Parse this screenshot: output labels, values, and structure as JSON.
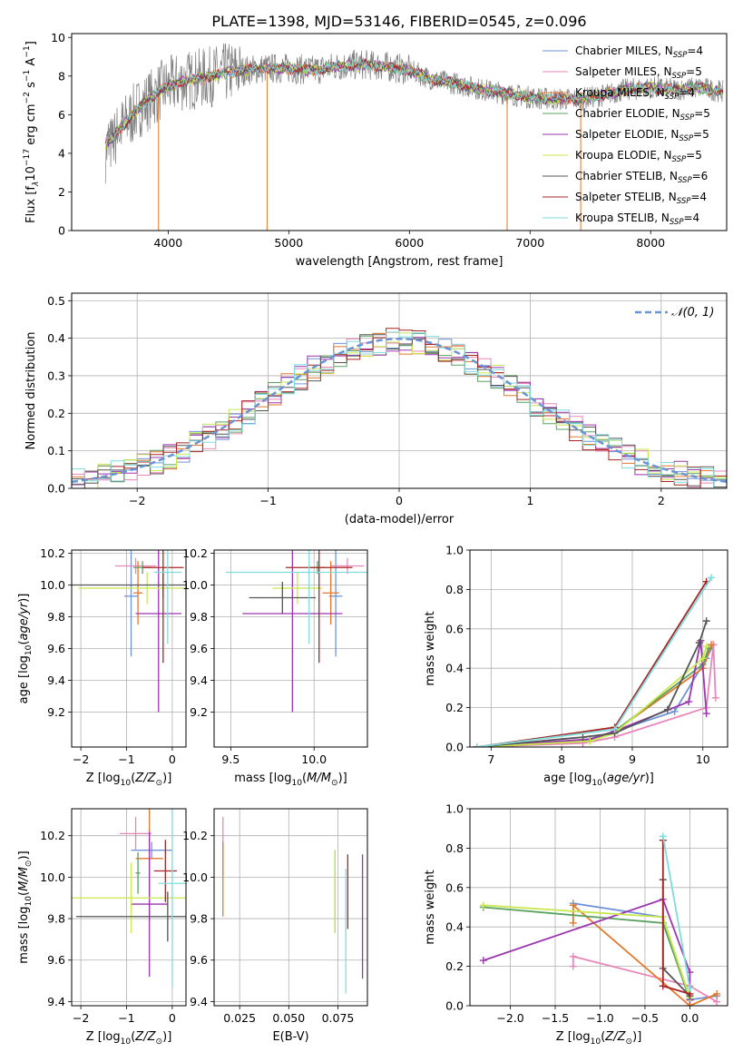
{
  "figure_title": "PLATE=1398, MJD=53146, FIBERID=0545, z=0.096",
  "colors": {
    "Chabrier MILES": "#6f93d8",
    "Salpeter MILES": "#e986b8",
    "Kroupa MILES": "#e3782b",
    "Chabrier ELODIE": "#5aa060",
    "Salpeter ELODIE": "#9b35b0",
    "Kroupa ELODIE": "#c8e84e",
    "Chabrier STELIB": "#555555",
    "Salpeter STELIB": "#a82424",
    "Kroupa STELIB": "#7fdcdc",
    "data": "#808080",
    "normal": "#6a93d4"
  },
  "chart_data": [
    {
      "type": "line",
      "title": "",
      "xlabel": "wavelength [Angstrom, rest frame]",
      "ylabel": "Flux [f",
      "ylabel_parts": [
        "λ",
        "10",
        "−17",
        " erg cm",
        "−2",
        " s",
        "−1",
        " A",
        "−1",
        "]"
      ],
      "xlim": [
        3200,
        8630
      ],
      "ylim": [
        0,
        10.2
      ],
      "xticks": [
        4000,
        5000,
        6000,
        7000,
        8000
      ],
      "yticks": [
        0,
        2,
        4,
        6,
        8,
        10
      ],
      "legend": [
        {
          "label": "Chabrier MILES, N",
          "sub": "SSP",
          "eq": "=4"
        },
        {
          "label": "Salpeter MILES, N",
          "sub": "SSP",
          "eq": "=5"
        },
        {
          "label": "Kroupa MILES, N",
          "sub": "SSP",
          "eq": "=4"
        },
        {
          "label": "Chabrier ELODIE, N",
          "sub": "SSP",
          "eq": "=5"
        },
        {
          "label": "Salpeter ELODIE, N",
          "sub": "SSP",
          "eq": "=5"
        },
        {
          "label": "Kroupa ELODIE, N",
          "sub": "SSP",
          "eq": "=5"
        },
        {
          "label": "Chabrier STELIB, N",
          "sub": "SSP",
          "eq": "=6"
        },
        {
          "label": "Salpeter STELIB, N",
          "sub": "SSP",
          "eq": "=4"
        },
        {
          "label": "Kroupa STELIB, N",
          "sub": "SSP",
          "eq": "=4"
        }
      ],
      "legend_loc": "right",
      "continuum": [
        [
          3480,
          4.5
        ],
        [
          3550,
          4.9
        ],
        [
          3650,
          5.6
        ],
        [
          3750,
          6.3
        ],
        [
          3850,
          6.8
        ],
        [
          3950,
          7.3
        ],
        [
          4100,
          7.7
        ],
        [
          4300,
          7.9
        ],
        [
          4500,
          8.2
        ],
        [
          4800,
          8.4
        ],
        [
          5000,
          8.4
        ],
        [
          5200,
          8.3
        ],
        [
          5400,
          8.5
        ],
        [
          5600,
          8.6
        ],
        [
          5800,
          8.5
        ],
        [
          6000,
          8.3
        ],
        [
          6200,
          7.8
        ],
        [
          6400,
          7.6
        ],
        [
          6600,
          7.3
        ],
        [
          6800,
          7.1
        ],
        [
          7000,
          6.9
        ],
        [
          7200,
          6.8
        ],
        [
          7400,
          6.8
        ],
        [
          7600,
          7.0
        ],
        [
          7800,
          7.3
        ],
        [
          8000,
          7.4
        ],
        [
          8200,
          7.3
        ],
        [
          8400,
          7.4
        ],
        [
          8600,
          7.2
        ]
      ],
      "spikes_down": [
        3920,
        4820,
        6810,
        7420
      ],
      "grid": false
    },
    {
      "type": "bar",
      "xlabel": "(data-model)/error",
      "ylabel": "Normed distribution",
      "xlim": [
        -2.5,
        2.5
      ],
      "ylim": [
        0,
        0.52
      ],
      "xticks": [
        -2,
        -1,
        0,
        1,
        2
      ],
      "yticks": [
        0.0,
        0.1,
        0.2,
        0.3,
        0.4,
        0.5
      ],
      "bin_width": 0.1,
      "legend": "𝒩(0, 1)",
      "legend_loc": "top-right",
      "grid": true
    },
    {
      "type": "scatter",
      "xlabel": "Z [log",
      "xlabel_parts": [
        "10",
        "(",
        "Z/Z",
        "⊙",
        ")]"
      ],
      "ylabel": "age  [log",
      "ylabel_parts": [
        "10",
        "(",
        "age/yr",
        ")]"
      ],
      "xlim": [
        -2.2,
        0.3
      ],
      "ylim": [
        8.98,
        10.22
      ],
      "xticks": [
        -2,
        -1,
        0
      ],
      "yticks": [
        9.2,
        9.4,
        9.6,
        9.8,
        10.0,
        10.2
      ],
      "points": [
        {
          "model": "Chabrier MILES",
          "x": -0.9,
          "xerr": 0.15,
          "y": 9.93,
          "yerr": 0.38
        },
        {
          "model": "Salpeter MILES",
          "x": -0.8,
          "xerr": 0.45,
          "y": 10.12,
          "yerr": 0.05
        },
        {
          "model": "Kroupa MILES",
          "x": -0.75,
          "xerr": 0.1,
          "y": 9.95,
          "yerr": 0.2
        },
        {
          "model": "Chabrier ELODIE",
          "x": -0.65,
          "xerr": 0.2,
          "y": 10.11,
          "yerr": 0.04
        },
        {
          "model": "Salpeter ELODIE",
          "x": -0.3,
          "xerr": 0.5,
          "y": 9.82,
          "yerr": 0.62
        },
        {
          "model": "Kroupa ELODIE",
          "x": -0.55,
          "xerr": 1.5,
          "y": 9.98,
          "yerr": 0.1
        },
        {
          "model": "Chabrier STELIB",
          "x": -0.2,
          "xerr": 2.0,
          "y": 10.0,
          "yerr": 0.08
        },
        {
          "model": "Salpeter STELIB",
          "x": -0.2,
          "xerr": 0.45,
          "y": 10.11,
          "yerr": 0.6
        },
        {
          "model": "Kroupa STELIB",
          "x": -0.1,
          "xerr": 0.3,
          "y": 10.08,
          "yerr": 0.45
        }
      ],
      "grid": true
    },
    {
      "type": "scatter",
      "xlabel": "mass [log",
      "xlabel_parts": [
        "10",
        "(",
        "M/M",
        "⊙",
        ")]"
      ],
      "ylabel": "",
      "xlim": [
        9.4,
        10.32
      ],
      "ylim": [
        8.98,
        10.22
      ],
      "xticks": [
        9.5,
        10.0
      ],
      "xtick_labels": [
        "9.5",
        "10.0"
      ],
      "yticks": [
        9.2,
        9.4,
        9.6,
        9.8,
        10.0,
        10.2
      ],
      "points": [
        {
          "model": "Chabrier MILES",
          "x": 10.13,
          "xerr": 0.04,
          "y": 9.93,
          "yerr": 0.38
        },
        {
          "model": "Salpeter MILES",
          "x": 10.2,
          "xerr": 0.1,
          "y": 10.12,
          "yerr": 0.05
        },
        {
          "model": "Kroupa MILES",
          "x": 10.1,
          "xerr": 0.05,
          "y": 9.95,
          "yerr": 0.2
        },
        {
          "model": "Chabrier ELODIE",
          "x": 10.02,
          "xerr": 0.05,
          "y": 10.11,
          "yerr": 0.04
        },
        {
          "model": "Salpeter ELODIE",
          "x": 9.87,
          "xerr": 0.3,
          "y": 9.82,
          "yerr": 0.62
        },
        {
          "model": "Kroupa ELODIE",
          "x": 9.9,
          "xerr": 0.15,
          "y": 9.98,
          "yerr": 0.1
        },
        {
          "model": "Chabrier STELIB",
          "x": 9.81,
          "xerr": 0.2,
          "y": 9.92,
          "yerr": 0.1
        },
        {
          "model": "Salpeter STELIB",
          "x": 10.03,
          "xerr": 0.2,
          "y": 10.11,
          "yerr": 0.6
        },
        {
          "model": "Kroupa STELIB",
          "x": 9.97,
          "xerr": 0.5,
          "y": 10.08,
          "yerr": 0.45
        }
      ],
      "grid": true
    },
    {
      "type": "line",
      "xlabel": "age  [log",
      "xlabel_parts": [
        "10",
        "(",
        "age/yr",
        ")]"
      ],
      "ylabel": "mass weight",
      "xlim": [
        6.7,
        10.35
      ],
      "ylim": [
        0,
        1.0
      ],
      "xticks": [
        7,
        8,
        9,
        10
      ],
      "yticks": [
        0.0,
        0.2,
        0.4,
        0.6,
        0.8,
        1.0
      ],
      "series": [
        {
          "model": "Chabrier MILES",
          "x": [
            6.8,
            8.3,
            8.75,
            9.6,
            10.05,
            10.15
          ],
          "y": [
            0.0,
            0.03,
            0.08,
            0.18,
            0.45,
            0.52
          ]
        },
        {
          "model": "Salpeter MILES",
          "x": [
            6.8,
            8.3,
            8.75,
            10.05,
            10.15,
            10.18
          ],
          "y": [
            0.0,
            0.02,
            0.05,
            0.2,
            0.52,
            0.25
          ]
        },
        {
          "model": "Kroupa MILES",
          "x": [
            6.8,
            8.4,
            8.75,
            10.0,
            10.12
          ],
          "y": [
            0.0,
            0.03,
            0.08,
            0.4,
            0.52
          ]
        },
        {
          "model": "Chabrier ELODIE",
          "x": [
            6.8,
            8.4,
            8.75,
            10.0,
            10.08
          ],
          "y": [
            0.0,
            0.03,
            0.08,
            0.42,
            0.5
          ]
        },
        {
          "model": "Salpeter ELODIE",
          "x": [
            6.8,
            8.4,
            8.75,
            9.8,
            9.97,
            10.05
          ],
          "y": [
            0.0,
            0.04,
            0.08,
            0.23,
            0.54,
            0.17
          ]
        },
        {
          "model": "Kroupa ELODIE",
          "x": [
            6.8,
            8.4,
            8.75,
            10.0,
            10.05
          ],
          "y": [
            0.0,
            0.03,
            0.07,
            0.45,
            0.51
          ]
        },
        {
          "model": "Chabrier STELIB",
          "x": [
            6.8,
            8.3,
            8.75,
            9.5,
            9.95,
            10.05
          ],
          "y": [
            0.0,
            0.05,
            0.07,
            0.19,
            0.53,
            0.64
          ]
        },
        {
          "model": "Salpeter STELIB",
          "x": [
            6.8,
            8.75,
            10.05
          ],
          "y": [
            0.0,
            0.1,
            0.84
          ]
        },
        {
          "model": "Kroupa STELIB",
          "x": [
            6.8,
            8.75,
            10.12
          ],
          "y": [
            0.0,
            0.09,
            0.86
          ]
        }
      ],
      "grid": true
    },
    {
      "type": "scatter",
      "xlabel": "Z [log",
      "xlabel_parts": [
        "10",
        "(",
        "Z/Z",
        "⊙",
        ")]"
      ],
      "ylabel": "mass [log",
      "ylabel_parts": [
        "10",
        "(",
        "M/M",
        "⊙",
        ")]"
      ],
      "xlim": [
        -2.2,
        0.3
      ],
      "ylim": [
        9.38,
        10.33
      ],
      "xticks": [
        -2,
        -1,
        0
      ],
      "yticks": [
        9.4,
        9.6,
        9.8,
        10.0,
        10.2
      ],
      "points": [
        {
          "model": "Chabrier MILES",
          "x": -0.45,
          "xerr": 0.45,
          "y": 10.13,
          "yerr": 0.04
        },
        {
          "model": "Salpeter MILES",
          "x": -0.8,
          "xerr": 0.35,
          "y": 10.21,
          "yerr": 0.08
        },
        {
          "model": "Kroupa MILES",
          "x": -0.5,
          "xerr": 0.3,
          "y": 10.09,
          "yerr": 0.3
        },
        {
          "model": "Chabrier ELODIE",
          "x": -0.75,
          "xerr": 0.05,
          "y": 10.02,
          "yerr": 0.1
        },
        {
          "model": "Salpeter ELODIE",
          "x": -0.5,
          "xerr": 0.4,
          "y": 9.87,
          "yerr": 0.35
        },
        {
          "model": "Kroupa ELODIE",
          "x": -0.9,
          "xerr": 1.3,
          "y": 9.9,
          "yerr": 0.17
        },
        {
          "model": "Chabrier STELIB",
          "x": -0.1,
          "xerr": 2.0,
          "y": 9.81,
          "yerr": 0.12
        },
        {
          "model": "Salpeter STELIB",
          "x": -0.15,
          "xerr": 0.25,
          "y": 10.03,
          "yerr": 0.15
        },
        {
          "model": "Kroupa STELIB",
          "x": 0.0,
          "xerr": 0.3,
          "y": 9.97,
          "yerr": 0.5
        }
      ],
      "grid": true
    },
    {
      "type": "scatter",
      "xlabel": "E(B-V)",
      "ylabel": "",
      "xlim": [
        0.012,
        0.09
      ],
      "ylim": [
        9.38,
        10.33
      ],
      "xticks": [
        0.025,
        0.05,
        0.075
      ],
      "xtick_labels": [
        "0.025",
        "0.050",
        "0.075"
      ],
      "yticks": [
        9.4,
        9.6,
        9.8,
        10.0,
        10.2
      ],
      "points": [
        {
          "model": "Salpeter MILES",
          "x": 0.0165,
          "xerr": 0.0,
          "y": 10.15,
          "yerr": 0.14
        },
        {
          "model": "Kroupa MILES",
          "x": 0.0165,
          "xerr": 0.0,
          "y": 9.99,
          "yerr": 0.18
        },
        {
          "model": "Chabrier ELODIE",
          "x": 0.0735,
          "xerr": 0.0,
          "y": 9.93,
          "yerr": 0.2
        },
        {
          "model": "Kroupa ELODIE",
          "x": 0.0735,
          "xerr": 0.0,
          "y": 9.93,
          "yerr": 0.2
        },
        {
          "model": "Kroupa STELIB",
          "x": 0.079,
          "xerr": 0.0,
          "y": 9.74,
          "yerr": 0.3
        },
        {
          "model": "Salpeter STELIB",
          "x": 0.08,
          "xerr": 0.0,
          "y": 9.93,
          "yerr": 0.18
        },
        {
          "model": "Salpeter ELODIE",
          "x": 0.0875,
          "xerr": 0.0,
          "y": 9.81,
          "yerr": 0.3
        }
      ],
      "grid": true
    },
    {
      "type": "line",
      "xlabel": "Z [log",
      "xlabel_parts": [
        "10",
        "(",
        "Z/Z",
        "⊙",
        ")]"
      ],
      "ylabel": "mass weight",
      "xlim": [
        -2.45,
        0.42
      ],
      "ylim": [
        0,
        1.0
      ],
      "xticks": [
        -2.0,
        -1.5,
        -1.0,
        -0.5,
        0.0
      ],
      "xtick_labels": [
        "−2.0",
        "−1.5",
        "−1.0",
        "−0.5",
        "0.0"
      ],
      "yticks": [
        0.0,
        0.2,
        0.4,
        0.6,
        0.8,
        1.0
      ],
      "series": [
        {
          "model": "Chabrier MILES",
          "x": [
            -1.3,
            -0.3,
            0.0,
            0.3
          ],
          "y": [
            0.52,
            0.45,
            0.03,
            0.05
          ]
        },
        {
          "model": "Salpeter MILES",
          "x": [
            -1.3,
            -1.3,
            0.0,
            0.3
          ],
          "y": [
            0.2,
            0.25,
            0.1,
            0.02
          ]
        },
        {
          "model": "Kroupa MILES",
          "x": [
            -1.3,
            -1.3,
            0.0,
            0.3
          ],
          "y": [
            0.42,
            0.51,
            0.0,
            0.06
          ]
        },
        {
          "model": "Chabrier ELODIE",
          "x": [
            -2.3,
            -0.3,
            0.0
          ],
          "y": [
            0.5,
            0.42,
            0.03
          ]
        },
        {
          "model": "Salpeter ELODIE",
          "x": [
            -2.3,
            -0.3,
            0.0,
            0.0
          ],
          "y": [
            0.23,
            0.54,
            0.17,
            0.03
          ]
        },
        {
          "model": "Kroupa ELODIE",
          "x": [
            -2.3,
            -0.3,
            0.0
          ],
          "y": [
            0.51,
            0.45,
            0.04
          ]
        },
        {
          "model": "Chabrier STELIB",
          "x": [
            -0.3,
            -0.3,
            0.0
          ],
          "y": [
            0.64,
            0.19,
            0.05
          ]
        },
        {
          "model": "Salpeter STELIB",
          "x": [
            -0.3,
            -0.3,
            0.0
          ],
          "y": [
            0.84,
            0.1,
            0.06
          ]
        },
        {
          "model": "Kroupa STELIB",
          "x": [
            -0.3,
            0.0
          ],
          "y": [
            0.86,
            0.09
          ]
        }
      ],
      "grid": true
    }
  ]
}
